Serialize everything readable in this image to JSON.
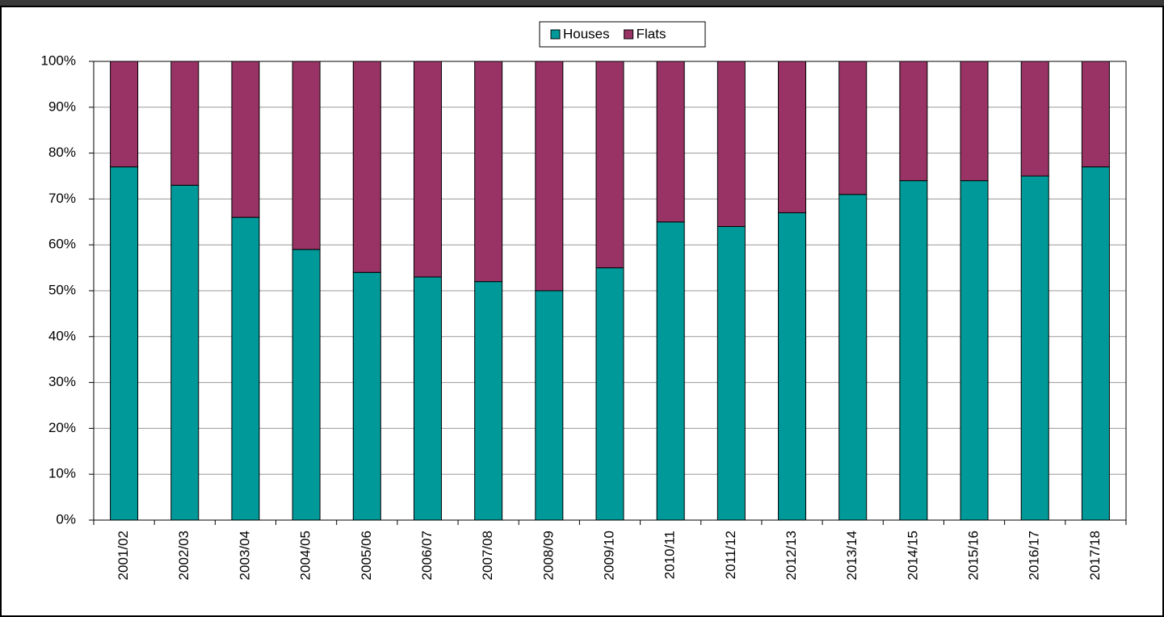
{
  "chart_data": {
    "type": "bar",
    "stacked": true,
    "categories": [
      "2001/02",
      "2002/03",
      "2003/04",
      "2004/05",
      "2005/06",
      "2006/07",
      "2007/08",
      "2008/09",
      "2009/10",
      "2010/11",
      "2011/12",
      "2012/13",
      "2013/14",
      "2014/15",
      "2015/16",
      "2016/17",
      "2017/18"
    ],
    "series": [
      {
        "name": "Houses",
        "color": "#009999",
        "values": [
          77,
          73,
          66,
          59,
          54,
          53,
          52,
          50,
          55,
          65,
          64,
          67,
          71,
          74,
          74,
          75,
          77
        ]
      },
      {
        "name": "Flats",
        "color": "#993366",
        "values": [
          23,
          27,
          34,
          41,
          46,
          47,
          48,
          50,
          45,
          35,
          36,
          33,
          29,
          26,
          26,
          25,
          23
        ]
      }
    ],
    "ylim": [
      0,
      100
    ],
    "yticks": [
      {
        "value": 0,
        "label": "0%"
      },
      {
        "value": 10,
        "label": "10%"
      },
      {
        "value": 20,
        "label": "20%"
      },
      {
        "value": 30,
        "label": "30%"
      },
      {
        "value": 40,
        "label": "40%"
      },
      {
        "value": 50,
        "label": "50%"
      },
      {
        "value": 60,
        "label": "60%"
      },
      {
        "value": 70,
        "label": "70%"
      },
      {
        "value": 80,
        "label": "80%"
      },
      {
        "value": 90,
        "label": "90%"
      },
      {
        "value": 100,
        "label": "100%"
      }
    ],
    "grid": true,
    "legend": "top"
  }
}
